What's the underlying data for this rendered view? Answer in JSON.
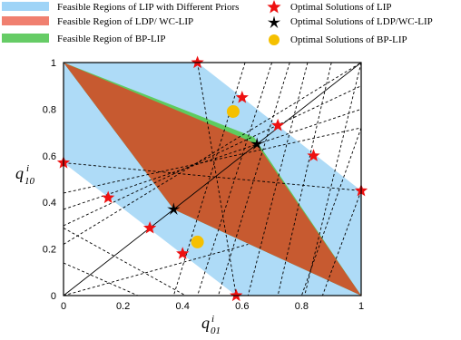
{
  "chart_data": {
    "type": "scatter",
    "xlabel": {
      "base": "q",
      "sub": "01",
      "sup": "i"
    },
    "ylabel": {
      "base": "q",
      "sub": "10",
      "sup": "i"
    },
    "xlim": [
      0,
      1
    ],
    "ylim": [
      0,
      1
    ],
    "x_ticks": [
      "0",
      "0.2",
      "0.4",
      "0.6",
      "0.8",
      "1"
    ],
    "y_ticks": [
      "0",
      "0.2",
      "0.4",
      "0.6",
      "0.8",
      "1"
    ],
    "grid": false,
    "legend": [
      {
        "label": "Feasible Regions of LIP with Different Priors",
        "marker": "swatch",
        "color": "#9fd4f7"
      },
      {
        "label": "Feasible Region of LDP/ WC-LIP",
        "marker": "swatch",
        "color": "#f08070"
      },
      {
        "label": "Feasible Region of BP-LIP",
        "marker": "swatch",
        "color": "#66cc66"
      },
      {
        "label": "Optimal Solutions of LIP",
        "marker": "star",
        "color": "#ee1111"
      },
      {
        "label": "Optimal Solutions of LDP/WC-LIP",
        "marker": "star",
        "color": "#000000"
      },
      {
        "label": "Optimal Solutions of BP-LIP",
        "marker": "circle",
        "color": "#f5c000"
      }
    ],
    "colors": {
      "lip_light": "#aedbf7",
      "lip_mid": "#3eaaf0",
      "bp": "#5ecb5e",
      "ldp": "#c75a30",
      "lip_star": "#ee1111",
      "ldp_star": "#000000",
      "bp_dot": "#f5c000"
    },
    "regions": {
      "lip_outer": [
        [
          0,
          1
        ],
        [
          0.45,
          1
        ],
        [
          1,
          0.45
        ],
        [
          1,
          0
        ],
        [
          0.58,
          0
        ],
        [
          0,
          0.57
        ]
      ],
      "lip_inner": [
        [
          0,
          1
        ],
        [
          0.65,
          0.65
        ],
        [
          1,
          0
        ],
        [
          0.37,
          0.37
        ]
      ],
      "bp": [
        [
          0,
          1
        ],
        [
          0.64,
          0.68
        ],
        [
          1,
          0
        ],
        [
          0.37,
          0.37
        ]
      ],
      "ldp": [
        [
          0,
          1
        ],
        [
          0.65,
          0.65
        ],
        [
          1,
          0
        ],
        [
          0.37,
          0.37
        ]
      ]
    },
    "diagonal": [
      [
        0,
        0
      ],
      [
        1,
        1
      ]
    ],
    "dashed_lines": [
      [
        [
          0.45,
          1
        ],
        [
          0.58,
          0
        ]
      ],
      [
        [
          0.61,
          1
        ],
        [
          0.37,
          0
        ]
      ],
      [
        [
          0.7,
          1
        ],
        [
          0.45,
          0
        ]
      ],
      [
        [
          0.76,
          1
        ],
        [
          0.52,
          0
        ]
      ],
      [
        [
          0.82,
          1
        ],
        [
          0.62,
          0
        ]
      ],
      [
        [
          0.9,
          1
        ],
        [
          0.72,
          0
        ]
      ],
      [
        [
          1.0,
          1
        ],
        [
          0.81,
          0
        ]
      ],
      [
        [
          1,
          0.72
        ],
        [
          0.8,
          0
        ]
      ],
      [
        [
          1,
          0.45
        ],
        [
          0.87,
          0
        ]
      ],
      [
        [
          0,
          0.57
        ],
        [
          1,
          0.45
        ]
      ],
      [
        [
          0,
          0.44
        ],
        [
          1,
          0.72
        ]
      ],
      [
        [
          0,
          0.37
        ],
        [
          1,
          0.8
        ]
      ],
      [
        [
          0,
          0.3
        ],
        [
          1,
          0.9
        ]
      ],
      [
        [
          0,
          0.22
        ],
        [
          1,
          1
        ]
      ],
      [
        [
          0,
          0.29
        ],
        [
          0.41,
          0
        ]
      ],
      [
        [
          0,
          0.14
        ],
        [
          0.25,
          0
        ]
      ],
      [
        [
          0,
          0.0
        ],
        [
          0.62,
          0.22
        ]
      ]
    ],
    "series": [
      {
        "name": "Optimal Solutions of LIP",
        "marker": "star",
        "x": [
          0.45,
          0.6,
          0.72,
          0.84,
          1.0,
          0.0,
          0.15,
          0.29,
          0.4,
          0.58
        ],
        "y": [
          1.0,
          0.85,
          0.73,
          0.6,
          0.45,
          0.57,
          0.42,
          0.29,
          0.18,
          0.0
        ]
      },
      {
        "name": "Optimal Solutions of LDP/WC-LIP",
        "marker": "star",
        "x": [
          0.37,
          0.65
        ],
        "y": [
          0.37,
          0.65
        ]
      },
      {
        "name": "Optimal Solutions of BP-LIP",
        "marker": "circle",
        "x": [
          0.57,
          0.45
        ],
        "y": [
          0.79,
          0.23
        ]
      }
    ]
  }
}
